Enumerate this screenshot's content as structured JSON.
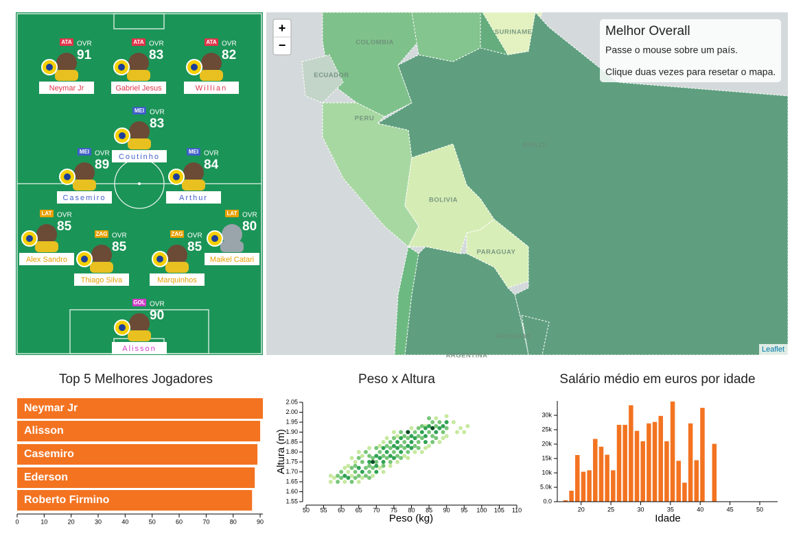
{
  "field": {
    "ovr_label": "OVR",
    "players": [
      {
        "position": "ATA",
        "rating": 91,
        "name": "Neymar Jr",
        "color": "#e0344a"
      },
      {
        "position": "ATA",
        "rating": 83,
        "name": "Gabriel Jesus",
        "color": "#e0344a"
      },
      {
        "position": "ATA",
        "rating": 82,
        "name": "Willian",
        "color": "#e0344a"
      },
      {
        "position": "MEI",
        "rating": 83,
        "name": "Coutinho",
        "color": "#3f5fc8"
      },
      {
        "position": "MEI",
        "rating": 89,
        "name": "Casemiro",
        "color": "#3f5fc8"
      },
      {
        "position": "MEI",
        "rating": 84,
        "name": "Arthur",
        "color": "#3f5fc8"
      },
      {
        "position": "LAT",
        "rating": 85,
        "name": "Alex Sandro",
        "color": "#e8a000"
      },
      {
        "position": "LAT",
        "rating": 80,
        "name": "Maikel Catari",
        "color": "#e8a000"
      },
      {
        "position": "ZAG",
        "rating": 85,
        "name": "Thiago Silva",
        "color": "#e8a000"
      },
      {
        "position": "ZAG",
        "rating": 85,
        "name": "Marquinhos",
        "color": "#e8a000"
      },
      {
        "position": "GOL",
        "rating": 90,
        "name": "Alisson",
        "color": "#d03cc8"
      }
    ]
  },
  "map": {
    "zoom_in": "+",
    "zoom_out": "−",
    "info_title": "Melhor Overall",
    "info_hover": "Passe o mouse sobre um país.",
    "info_reset": "Clique duas vezes para resetar o mapa.",
    "attribution": "Leaflet",
    "labels": [
      "COLOMBIA",
      "ECUADOR",
      "SURINAME",
      "PERU",
      "BRAZIL",
      "BOLIVIA",
      "PARAGUAY",
      "URUGUAY",
      "ARGENTINA"
    ]
  },
  "chart_data": [
    {
      "type": "hbar",
      "title": "Top 5 Melhores Jogadores",
      "categories": [
        "Neymar Jr",
        "Alisson",
        "Casemiro",
        "Ederson",
        "Roberto Firmino"
      ],
      "values": [
        91,
        90,
        89,
        88,
        87
      ],
      "color": "#f37321",
      "xlim": [
        0,
        91
      ],
      "xticks": [
        0,
        10,
        20,
        30,
        40,
        50,
        60,
        70,
        80,
        90
      ]
    },
    {
      "type": "scatter",
      "title": "Peso x Altura",
      "x_label": "Peso (kg)",
      "y_label": "Altura (m)",
      "xlim": [
        50,
        110
      ],
      "ylim": [
        1.55,
        2.05
      ],
      "xticks": [
        50,
        55,
        60,
        65,
        70,
        75,
        80,
        85,
        90,
        95,
        100,
        105,
        110
      ],
      "yticks": [
        1.55,
        {
          "value": 1.6,
          "label": "1.60"
        },
        1.65,
        {
          "value": 1.7,
          "label": "1.70"
        },
        1.75,
        {
          "value": 1.8,
          "label": "1.80"
        },
        1.85,
        {
          "value": 1.9,
          "label": "1.90"
        },
        1.95,
        {
          "value": 2,
          "label": "2.00"
        },
        2.05
      ],
      "series": [
        {
          "color": "#c7e9a0",
          "x": [
            57,
            61,
            65,
            58,
            66,
            57,
            63,
            69,
            62,
            72,
            61,
            71,
            62,
            74,
            64,
            76,
            63,
            79,
            66,
            78,
            65,
            81,
            83,
            68,
            84,
            71,
            85,
            72,
            88,
            73,
            89,
            76,
            90,
            75,
            93,
            95,
            80,
            94,
            84,
            92,
            87,
            90,
            96
          ],
          "y": [
            1.65,
            1.65,
            1.65,
            1.67,
            1.67,
            1.68,
            1.68,
            1.68,
            1.7,
            1.7,
            1.72,
            1.72,
            1.73,
            1.73,
            1.75,
            1.75,
            1.77,
            1.77,
            1.78,
            1.78,
            1.8,
            1.8,
            1.8,
            1.82,
            1.82,
            1.83,
            1.83,
            1.85,
            1.85,
            1.87,
            1.87,
            1.88,
            1.88,
            1.9,
            1.9,
            1.9,
            1.92,
            1.92,
            1.93,
            1.95,
            1.97,
            1.98,
            1.93
          ]
        },
        {
          "color": "#78c679",
          "x": [
            59,
            63,
            60,
            64,
            68,
            59,
            65,
            67,
            60,
            64,
            68,
            63,
            67,
            69,
            64,
            68,
            72,
            66,
            70,
            74,
            65,
            69,
            73,
            77,
            68,
            72,
            76,
            67,
            71,
            75,
            79,
            70,
            74,
            78,
            82,
            73,
            77,
            81,
            74,
            78,
            82,
            86,
            75,
            79,
            83,
            87,
            78,
            82,
            86,
            77,
            81,
            85,
            89,
            82,
            86,
            90,
            83,
            87,
            86,
            88,
            85
          ],
          "y": [
            1.65,
            1.65,
            1.67,
            1.67,
            1.67,
            1.68,
            1.68,
            1.68,
            1.7,
            1.7,
            1.7,
            1.72,
            1.72,
            1.72,
            1.73,
            1.73,
            1.73,
            1.75,
            1.75,
            1.75,
            1.77,
            1.77,
            1.77,
            1.77,
            1.78,
            1.78,
            1.78,
            1.8,
            1.8,
            1.8,
            1.8,
            1.82,
            1.82,
            1.82,
            1.82,
            1.83,
            1.83,
            1.83,
            1.85,
            1.85,
            1.85,
            1.85,
            1.87,
            1.87,
            1.87,
            1.87,
            1.88,
            1.88,
            1.88,
            1.9,
            1.9,
            1.9,
            1.9,
            1.92,
            1.92,
            1.92,
            1.93,
            1.93,
            1.95,
            1.95,
            1.97
          ]
        },
        {
          "color": "#31a354",
          "x": [
            62,
            61,
            66,
            70,
            65,
            70,
            68,
            72,
            71,
            75,
            70,
            74,
            73,
            77,
            72,
            76,
            80,
            75,
            79,
            76,
            80,
            84,
            77,
            81,
            80,
            84,
            79,
            83,
            87,
            84,
            88,
            85,
            89,
            90
          ],
          "y": [
            1.67,
            1.68,
            1.7,
            1.7,
            1.72,
            1.73,
            1.75,
            1.75,
            1.77,
            1.77,
            1.78,
            1.78,
            1.8,
            1.8,
            1.82,
            1.82,
            1.82,
            1.83,
            1.83,
            1.85,
            1.85,
            1.85,
            1.87,
            1.87,
            1.88,
            1.88,
            1.9,
            1.9,
            1.9,
            1.92,
            1.92,
            1.93,
            1.93,
            1.95
          ]
        },
        {
          "color": "#0b4d24",
          "x": [
            69,
            79,
            86
          ],
          "y": [
            1.75,
            1.9,
            1.92
          ]
        }
      ]
    },
    {
      "type": "column",
      "title": "Salário médio em euros por idade",
      "x_label": "Idade",
      "color": "#f37321",
      "xlim": [
        16,
        53
      ],
      "ylim": [
        0,
        35000
      ],
      "xticks": [
        20,
        25,
        30,
        35,
        40,
        45,
        50
      ],
      "yticks": [
        {
          "value": 0,
          "label": "0.0"
        },
        {
          "value": 5000,
          "label": "5.0k"
        },
        {
          "value": 10000,
          "label": "10k"
        },
        {
          "value": 15000,
          "label": "15k"
        },
        {
          "value": 20000,
          "label": "20k"
        },
        {
          "value": 25000,
          "label": "25k"
        },
        {
          "value": 30000,
          "label": "30k"
        }
      ],
      "x": [
        17,
        18,
        19,
        20,
        21,
        22,
        23,
        24,
        25,
        26,
        27,
        28,
        29,
        30,
        31,
        32,
        33,
        34,
        35,
        36,
        37,
        38,
        39,
        40,
        42
      ],
      "values": [
        500,
        3800,
        16200,
        10400,
        10900,
        21800,
        19100,
        16300,
        10900,
        26700,
        26700,
        33500,
        24600,
        21000,
        27200,
        27700,
        29800,
        21000,
        34800,
        14200,
        6600,
        27200,
        14400,
        32600,
        20100
      ]
    }
  ]
}
